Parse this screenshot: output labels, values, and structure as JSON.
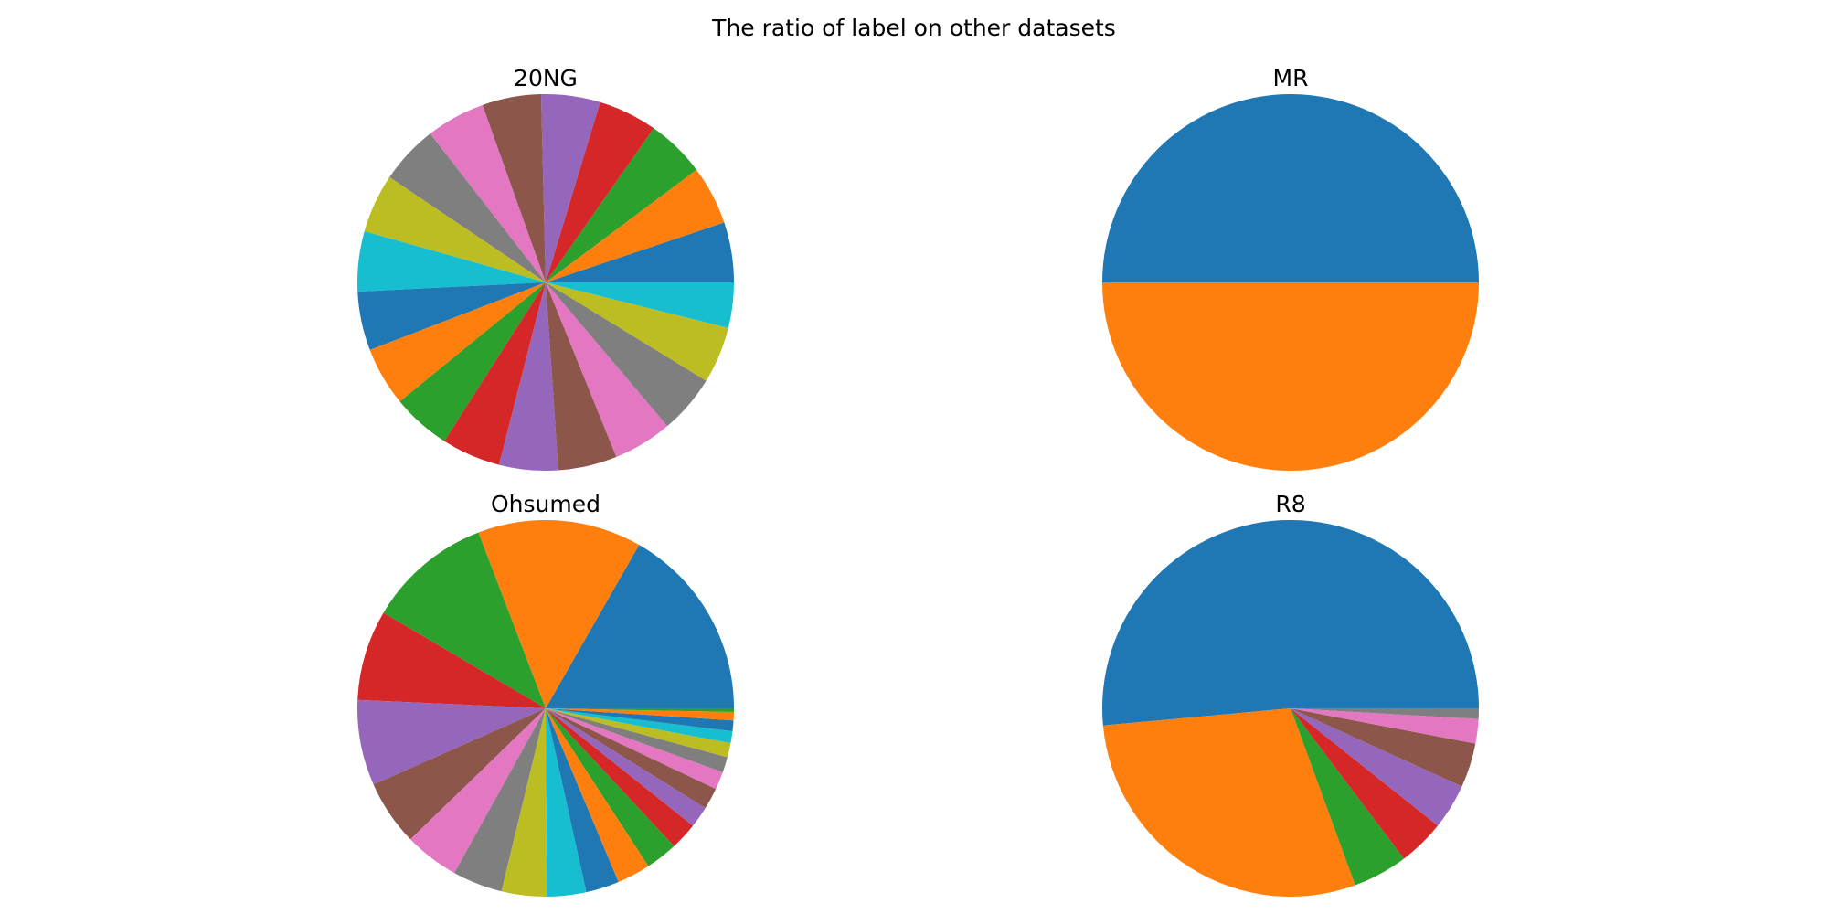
{
  "figure": {
    "title": "The ratio of label on other datasets"
  },
  "colors": [
    "#1f77b4",
    "#ff7f0e",
    "#2ca02c",
    "#d62728",
    "#9467bd",
    "#8c564b",
    "#e377c2",
    "#7f7f7f",
    "#bcbd22",
    "#17becf"
  ],
  "chart_data": [
    {
      "type": "pie",
      "title": "20NG",
      "start_angle": 0,
      "direction": "counterclockwise",
      "values": [
        5.3,
        5.2,
        5.2,
        5.2,
        5.2,
        5.2,
        5.2,
        5.2,
        5.2,
        5.3,
        5.2,
        5.2,
        5.2,
        5.2,
        5.2,
        5.2,
        5.2,
        5.2,
        5.0,
        4.0
      ]
    },
    {
      "type": "pie",
      "title": "MR",
      "start_angle": 0,
      "direction": "counterclockwise",
      "values": [
        50,
        50
      ]
    },
    {
      "type": "pie",
      "title": "Ohsumed",
      "start_angle": 0,
      "direction": "counterclockwise",
      "values": [
        16.4,
        13.8,
        10.5,
        7.6,
        7.2,
        5.5,
        4.6,
        4.2,
        3.8,
        3.3,
        2.8,
        2.8,
        2.7,
        2.3,
        1.8,
        1.8,
        1.5,
        1.3,
        1.2,
        1.0,
        0.9,
        0.7,
        0.3
      ]
    },
    {
      "type": "pie",
      "title": "R8",
      "start_angle": 0,
      "direction": "counterclockwise",
      "values": [
        51.4,
        29.1,
        4.7,
        4.0,
        3.9,
        3.8,
        2.1,
        0.9
      ]
    }
  ]
}
